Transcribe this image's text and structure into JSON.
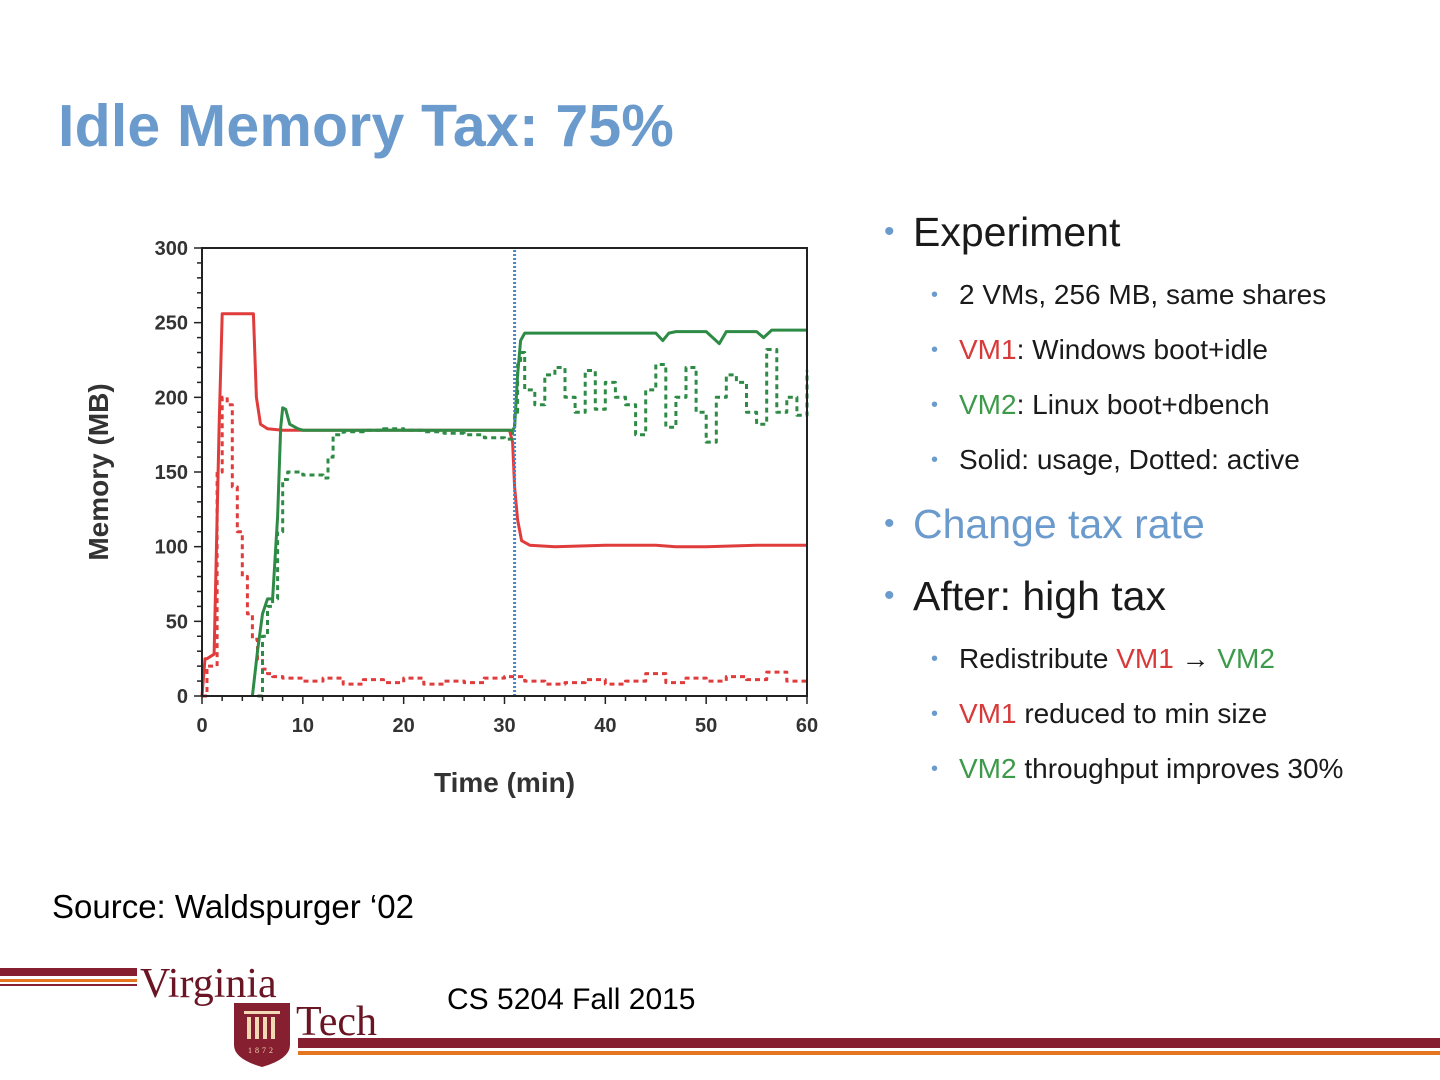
{
  "slide": {
    "title": "Idle Memory Tax: 75%",
    "source": "Source: Waldspurger ‘02",
    "course": "CS 5204 Fall 2015",
    "logo": {
      "line1": "Virginia",
      "line2": "Tech",
      "year": "1872"
    }
  },
  "colors": {
    "title": "#6b9bcd",
    "vm1": "#e03c3c",
    "vm2": "#2e8b46",
    "marker": "#4a86c6",
    "maroon": "#861f2f",
    "orange": "#e5751f"
  },
  "bullets": [
    {
      "level": 1,
      "parts": [
        {
          "text": "Experiment",
          "color": "default"
        }
      ]
    },
    {
      "level": 2,
      "parts": [
        {
          "text": "2 VMs, 256 MB, same shares",
          "color": "default"
        }
      ]
    },
    {
      "level": 2,
      "parts": [
        {
          "text": "VM1",
          "color": "red"
        },
        {
          "text": ": Windows boot+idle",
          "color": "default"
        }
      ]
    },
    {
      "level": 2,
      "parts": [
        {
          "text": "VM2",
          "color": "green"
        },
        {
          "text": ": Linux boot+dbench",
          "color": "default"
        }
      ]
    },
    {
      "level": 2,
      "parts": [
        {
          "text": "Solid: usage, Dotted: active",
          "color": "default"
        }
      ]
    },
    {
      "level": 1,
      "parts": [
        {
          "text": "Change tax rate",
          "color": "blue"
        }
      ]
    },
    {
      "level": 1,
      "parts": [
        {
          "text": "After: high tax",
          "color": "default"
        }
      ]
    },
    {
      "level": 2,
      "parts": [
        {
          "text": "Redistribute ",
          "color": "default"
        },
        {
          "text": "VM1",
          "color": "red"
        },
        {
          "text": " → ",
          "color": "default"
        },
        {
          "text": "VM2",
          "color": "green"
        }
      ]
    },
    {
      "level": 2,
      "parts": [
        {
          "text": "VM1",
          "color": "red"
        },
        {
          "text": " reduced to min size",
          "color": "default"
        }
      ]
    },
    {
      "level": 2,
      "parts": [
        {
          "text": "VM2",
          "color": "green"
        },
        {
          "text": " throughput improves 30%",
          "color": "default"
        }
      ]
    }
  ],
  "chart_data": {
    "type": "line",
    "title": "",
    "xlabel": "Time (min)",
    "ylabel": "Memory (MB)",
    "xlim": [
      0,
      60
    ],
    "ylim": [
      0,
      300
    ],
    "xticks": [
      0,
      10,
      20,
      30,
      40,
      50,
      60
    ],
    "yticks": [
      0,
      50,
      100,
      150,
      200,
      250,
      300
    ],
    "grid": false,
    "legend": "none",
    "annotations": [
      {
        "type": "vline",
        "x": 31,
        "style": "dotted",
        "label": ""
      }
    ],
    "series": [
      {
        "vm": "VM1",
        "metric": "usage",
        "style": "solid",
        "color": "vm1",
        "x": [
          0,
          0.3,
          0.5,
          1.2,
          1.7,
          2,
          5.1,
          5.4,
          5.8,
          6.5,
          8,
          10,
          15,
          20,
          25,
          30.5,
          30.8,
          31,
          31.3,
          31.7,
          32.5,
          35,
          40,
          45,
          47,
          50,
          55,
          58,
          60
        ],
        "y": [
          0,
          25,
          25,
          28,
          180,
          256,
          256,
          200,
          182,
          179,
          178,
          178,
          178,
          178,
          178,
          178,
          170,
          140,
          118,
          104,
          101,
          100,
          101,
          101,
          100,
          100,
          101,
          101,
          101
        ]
      },
      {
        "vm": "VM1",
        "metric": "active",
        "style": "dotted",
        "color": "vm1",
        "x": [
          0,
          0.5,
          1.5,
          2,
          2.5,
          3,
          3.5,
          4,
          4.5,
          5,
          5.5,
          6,
          6.5,
          7,
          8,
          10,
          12,
          14,
          16,
          18,
          20,
          22,
          24,
          26,
          28,
          30,
          32,
          34,
          36,
          38,
          40,
          42,
          44,
          46,
          48,
          50,
          52,
          54,
          56,
          58,
          60
        ],
        "y": [
          0,
          20,
          150,
          200,
          195,
          140,
          110,
          80,
          55,
          38,
          25,
          18,
          15,
          13,
          12,
          10,
          12,
          8,
          11,
          9,
          12,
          8,
          10,
          9,
          12,
          13,
          10,
          8,
          9,
          11,
          8,
          10,
          15,
          9,
          12,
          10,
          13,
          11,
          16,
          10,
          8
        ]
      },
      {
        "vm": "VM2",
        "metric": "usage",
        "style": "solid",
        "color": "vm2",
        "x": [
          5,
          5.5,
          6,
          6.5,
          7,
          7.5,
          7.8,
          8,
          8.3,
          8.7,
          9.5,
          10,
          15,
          20,
          25,
          30,
          30.8,
          31,
          31.3,
          31.6,
          32,
          35,
          40,
          45,
          45.7,
          46.3,
          47,
          50,
          51.3,
          52,
          55,
          55.7,
          56.5,
          60
        ],
        "y": [
          0,
          30,
          55,
          65,
          65,
          120,
          180,
          193,
          192,
          182,
          179,
          178,
          178,
          178,
          178,
          178,
          178,
          180,
          215,
          238,
          243,
          243,
          243,
          243,
          238,
          243,
          244,
          244,
          236,
          244,
          244,
          240,
          245,
          245
        ]
      },
      {
        "vm": "VM2",
        "metric": "active",
        "style": "dotted",
        "color": "vm2",
        "x": [
          5.5,
          6,
          6.5,
          7,
          7.5,
          8,
          8.5,
          9,
          10,
          11,
          12,
          12.5,
          13,
          14,
          16,
          18,
          20,
          22,
          24,
          26,
          28,
          30,
          30.8,
          31,
          31.3,
          31.6,
          32,
          33,
          34,
          35,
          36,
          37,
          38,
          39,
          40,
          41,
          42,
          43,
          44,
          45,
          46,
          47,
          48,
          49,
          50,
          51,
          52,
          53,
          54,
          55,
          56,
          57,
          58,
          59,
          60
        ],
        "y": [
          0,
          40,
          60,
          65,
          110,
          145,
          150,
          150,
          148,
          148,
          146,
          160,
          175,
          177,
          178,
          179,
          178,
          177,
          176,
          175,
          173,
          172,
          178,
          190,
          222,
          230,
          205,
          195,
          215,
          220,
          200,
          190,
          218,
          192,
          210,
          200,
          195,
          175,
          205,
          222,
          180,
          200,
          220,
          190,
          170,
          200,
          215,
          210,
          190,
          182,
          232,
          190,
          200,
          188,
          218
        ]
      }
    ]
  }
}
